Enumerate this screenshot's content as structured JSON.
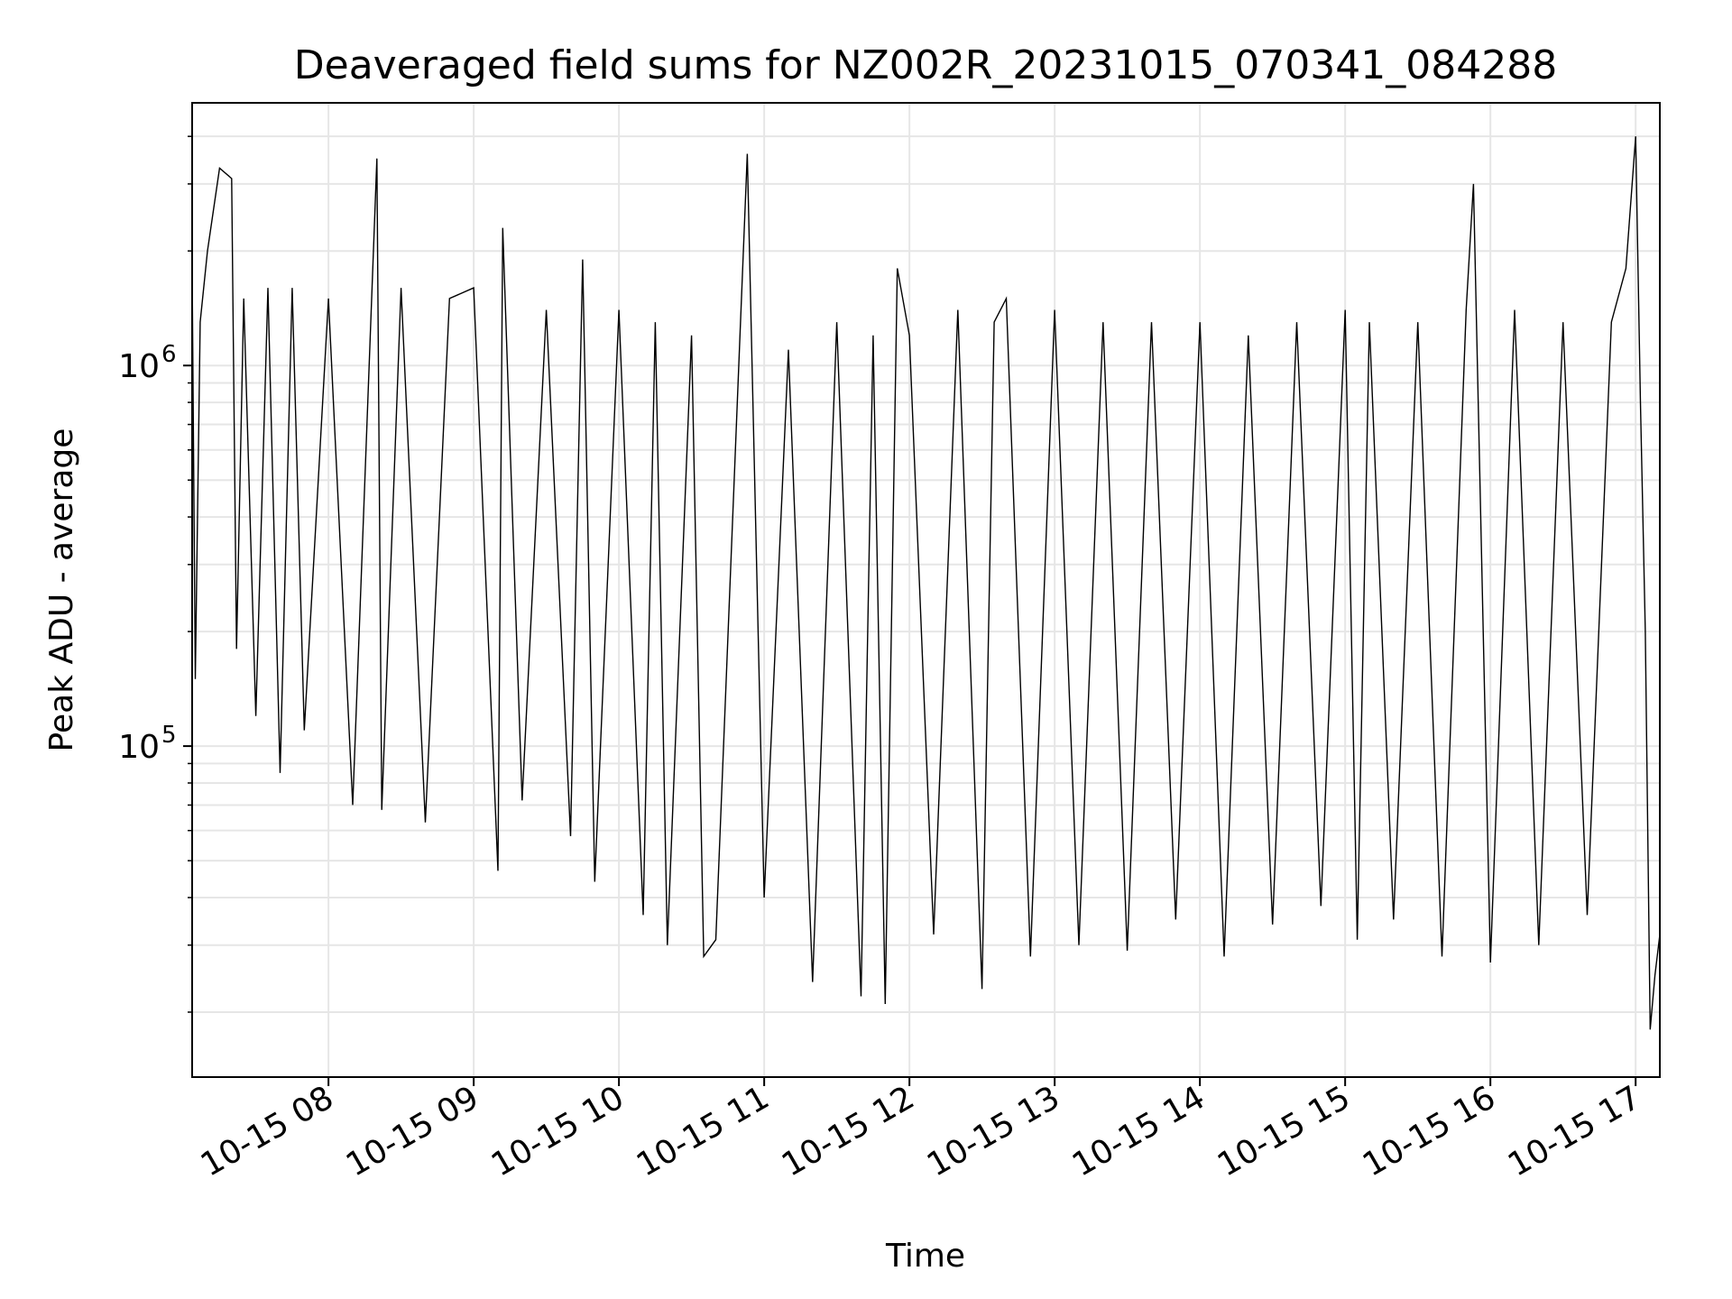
{
  "chart_data": {
    "type": "line",
    "title": "Deaveraged field sums for NZ002R_20231015_070341_084288",
    "xlabel": "Time",
    "ylabel": "Peak ADU - average",
    "yscale": "log",
    "grid": true,
    "legend": "none",
    "line_color": "#000000",
    "grid_color": "#e6e6e6",
    "xlim": [
      "2023-10-15 07:03:41",
      "2023-10-15 17:10:00"
    ],
    "ylim": [
      13500,
      4900000
    ],
    "x_ticks": [
      {
        "value": "2023-10-15 08:00",
        "label": "10-15 08"
      },
      {
        "value": "2023-10-15 09:00",
        "label": "10-15 09"
      },
      {
        "value": "2023-10-15 10:00",
        "label": "10-15 10"
      },
      {
        "value": "2023-10-15 11:00",
        "label": "10-15 11"
      },
      {
        "value": "2023-10-15 12:00",
        "label": "10-15 12"
      },
      {
        "value": "2023-10-15 13:00",
        "label": "10-15 13"
      },
      {
        "value": "2023-10-15 14:00",
        "label": "10-15 14"
      },
      {
        "value": "2023-10-15 15:00",
        "label": "10-15 15"
      },
      {
        "value": "2023-10-15 16:00",
        "label": "10-15 16"
      },
      {
        "value": "2023-10-15 17:00",
        "label": "10-15 17"
      }
    ],
    "y_ticks": [
      {
        "value": 100000,
        "base": "10",
        "exp": "5"
      },
      {
        "value": 1000000,
        "base": "10",
        "exp": "6"
      }
    ],
    "series": [
      {
        "name": "",
        "x": [
          "2023-10-15 07:03:41",
          "2023-10-15 07:05",
          "2023-10-15 07:07",
          "2023-10-15 07:10",
          "2023-10-15 07:15",
          "2023-10-15 07:20",
          "2023-10-15 07:22",
          "2023-10-15 07:25",
          "2023-10-15 07:30",
          "2023-10-15 07:35",
          "2023-10-15 07:40",
          "2023-10-15 07:45",
          "2023-10-15 07:50",
          "2023-10-15 08:00",
          "2023-10-15 08:10",
          "2023-10-15 08:20",
          "2023-10-15 08:22",
          "2023-10-15 08:30",
          "2023-10-15 08:40",
          "2023-10-15 08:50",
          "2023-10-15 09:00",
          "2023-10-15 09:10",
          "2023-10-15 09:12",
          "2023-10-15 09:20",
          "2023-10-15 09:30",
          "2023-10-15 09:40",
          "2023-10-15 09:45",
          "2023-10-15 09:50",
          "2023-10-15 10:00",
          "2023-10-15 10:10",
          "2023-10-15 10:15",
          "2023-10-15 10:20",
          "2023-10-15 10:30",
          "2023-10-15 10:35",
          "2023-10-15 10:40",
          "2023-10-15 10:50",
          "2023-10-15 10:53",
          "2023-10-15 11:00",
          "2023-10-15 11:10",
          "2023-10-15 11:20",
          "2023-10-15 11:30",
          "2023-10-15 11:40",
          "2023-10-15 11:45",
          "2023-10-15 11:50",
          "2023-10-15 11:55",
          "2023-10-15 12:00",
          "2023-10-15 12:10",
          "2023-10-15 12:20",
          "2023-10-15 12:30",
          "2023-10-15 12:35",
          "2023-10-15 12:40",
          "2023-10-15 12:50",
          "2023-10-15 13:00",
          "2023-10-15 13:10",
          "2023-10-15 13:20",
          "2023-10-15 13:30",
          "2023-10-15 13:40",
          "2023-10-15 13:50",
          "2023-10-15 14:00",
          "2023-10-15 14:10",
          "2023-10-15 14:20",
          "2023-10-15 14:30",
          "2023-10-15 14:40",
          "2023-10-15 14:50",
          "2023-10-15 15:00",
          "2023-10-15 15:05",
          "2023-10-15 15:10",
          "2023-10-15 15:20",
          "2023-10-15 15:30",
          "2023-10-15 15:40",
          "2023-10-15 15:50",
          "2023-10-15 15:53",
          "2023-10-15 16:00",
          "2023-10-15 16:10",
          "2023-10-15 16:20",
          "2023-10-15 16:30",
          "2023-10-15 16:40",
          "2023-10-15 16:50",
          "2023-10-15 16:56",
          "2023-10-15 17:00",
          "2023-10-15 17:02",
          "2023-10-15 17:04",
          "2023-10-15 17:06",
          "2023-10-15 17:08",
          "2023-10-15 17:10"
        ],
        "y": [
          1800000,
          150000,
          1300000,
          2000000,
          3300000,
          3100000,
          180000,
          1500000,
          120000,
          1600000,
          85000,
          1600000,
          110000,
          1500000,
          70000,
          3500000,
          68000,
          1600000,
          63000,
          1500000,
          1600000,
          47000,
          2300000,
          72000,
          1400000,
          58000,
          1900000,
          44000,
          1400000,
          36000,
          1300000,
          30000,
          1200000,
          28000,
          31000,
          1200000,
          3600000,
          40000,
          1100000,
          24000,
          1300000,
          22000,
          1200000,
          21000,
          1800000,
          1200000,
          32000,
          1400000,
          23000,
          1300000,
          1500000,
          28000,
          1400000,
          30000,
          1300000,
          29000,
          1300000,
          35000,
          1300000,
          28000,
          1200000,
          34000,
          1300000,
          38000,
          1400000,
          31000,
          1300000,
          35000,
          1300000,
          28000,
          1400000,
          3000000,
          27000,
          1400000,
          30000,
          1300000,
          36000,
          1300000,
          1800000,
          4000000,
          800000,
          200000,
          18000,
          25000,
          32000
        ]
      }
    ]
  }
}
